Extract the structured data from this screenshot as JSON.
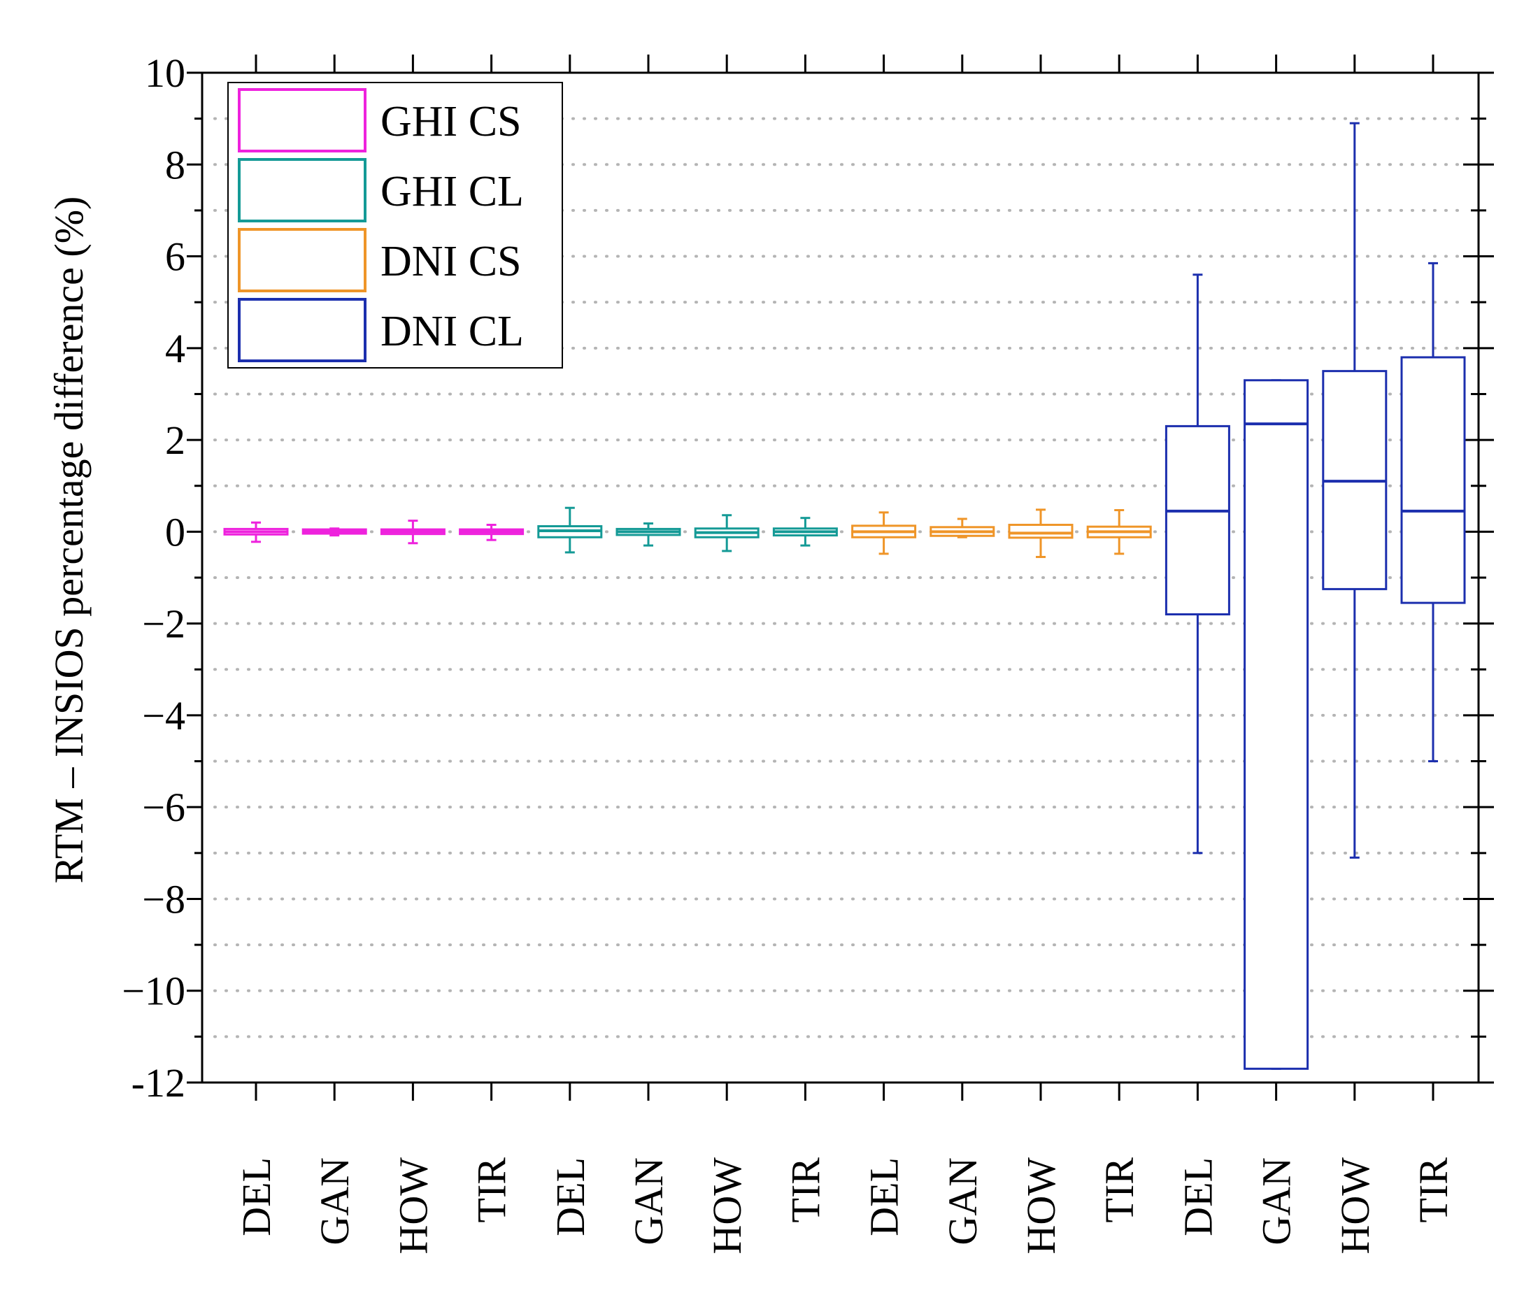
{
  "chart_data": {
    "type": "box",
    "title": "",
    "xlabel": "",
    "ylabel": "RTM – INSIOS percentage difference (%)",
    "ylim": [
      -12,
      10
    ],
    "yticks": [
      10,
      8,
      6,
      4,
      2,
      0,
      -2,
      -4,
      -6,
      -8,
      -10,
      -12
    ],
    "ytick_labels": [
      "10",
      "8",
      "6",
      "4",
      "2",
      "0",
      "−2",
      "−4",
      "−6",
      "−8",
      "−10",
      "-12"
    ],
    "grid": "dotted horizontal at every 1 unit",
    "legend_position": "top-left",
    "categories": [
      "DEL",
      "GAN",
      "HOW",
      "TIR",
      "DEL",
      "GAN",
      "HOW",
      "TIR",
      "DEL",
      "GAN",
      "HOW",
      "TIR",
      "DEL",
      "GAN",
      "HOW",
      "TIR"
    ],
    "series": [
      {
        "name": "GHI CS",
        "color": "#ee22dd",
        "boxes": [
          {
            "min": -0.22,
            "q1": -0.06,
            "median": 0.0,
            "q3": 0.06,
            "max": 0.2
          },
          {
            "min": -0.08,
            "q1": -0.04,
            "median": 0.0,
            "q3": 0.05,
            "max": 0.07
          },
          {
            "min": -0.25,
            "q1": -0.05,
            "median": 0.0,
            "q3": 0.05,
            "max": 0.24
          },
          {
            "min": -0.18,
            "q1": -0.05,
            "median": 0.0,
            "q3": 0.05,
            "max": 0.15
          }
        ]
      },
      {
        "name": "GHI CL",
        "color": "#149a96",
        "boxes": [
          {
            "min": -0.45,
            "q1": -0.12,
            "median": 0.02,
            "q3": 0.12,
            "max": 0.52
          },
          {
            "min": -0.3,
            "q1": -0.07,
            "median": 0.0,
            "q3": 0.06,
            "max": 0.18
          },
          {
            "min": -0.42,
            "q1": -0.12,
            "median": -0.02,
            "q3": 0.07,
            "max": 0.36
          },
          {
            "min": -0.3,
            "q1": -0.08,
            "median": 0.0,
            "q3": 0.07,
            "max": 0.3
          }
        ]
      },
      {
        "name": "DNI CS",
        "color": "#ef9528",
        "boxes": [
          {
            "min": -0.48,
            "q1": -0.12,
            "median": 0.0,
            "q3": 0.13,
            "max": 0.42
          },
          {
            "min": -0.12,
            "q1": -0.09,
            "median": 0.0,
            "q3": 0.1,
            "max": 0.28
          },
          {
            "min": -0.55,
            "q1": -0.13,
            "median": -0.03,
            "q3": 0.15,
            "max": 0.48
          },
          {
            "min": -0.48,
            "q1": -0.12,
            "median": 0.0,
            "q3": 0.11,
            "max": 0.47
          }
        ]
      },
      {
        "name": "DNI CL",
        "color": "#1c2fae",
        "boxes": [
          {
            "min": -7.0,
            "q1": -1.8,
            "median": 0.45,
            "q3": 2.3,
            "max": 5.6
          },
          {
            "min": -11.7,
            "q1": -11.7,
            "median": 2.35,
            "q3": 3.3,
            "max": 3.3
          },
          {
            "min": -7.1,
            "q1": -1.25,
            "median": 1.1,
            "q3": 3.5,
            "max": 8.9
          },
          {
            "min": -5.0,
            "q1": -1.55,
            "median": 0.45,
            "q3": 3.8,
            "max": 5.85
          }
        ]
      }
    ]
  }
}
